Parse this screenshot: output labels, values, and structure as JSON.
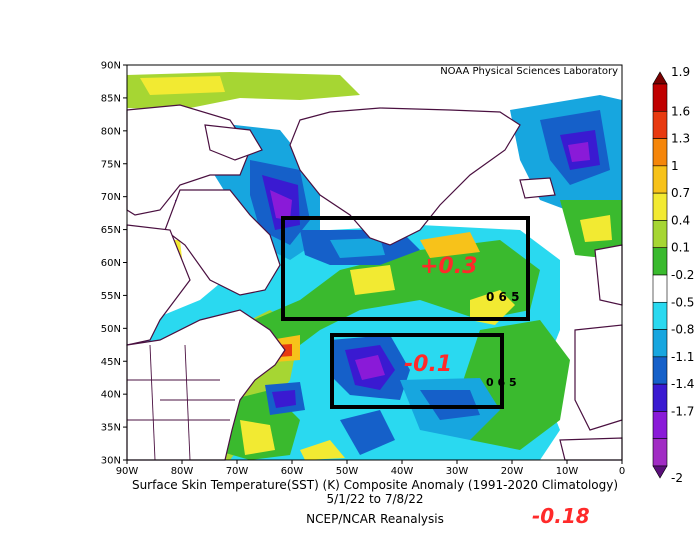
{
  "credit": "NOAA Physical Sciences Laboratory",
  "caption": {
    "line1": "Surface Skin Temperature(SST) (K) Composite Anomaly (1991-2020 Climatology)",
    "line2": "5/1/22  to 7/8/22",
    "line3": "NCEP/NCAR Reanalysis"
  },
  "axes": {
    "lat_labels": [
      "90N",
      "85N",
      "80N",
      "75N",
      "70N",
      "65N",
      "60N",
      "55N",
      "50N",
      "45N",
      "40N",
      "35N",
      "30N"
    ],
    "lon_labels": [
      "90W",
      "80W",
      "70W",
      "60W",
      "50W",
      "40W",
      "30W",
      "20W",
      "10W",
      "0"
    ]
  },
  "colorbar": {
    "labels": [
      "1.9",
      "1.6",
      "1.3",
      "1",
      "0.7",
      "0.4",
      "0.1",
      "-0.2",
      "-0.5",
      "-0.8",
      "-1.1",
      "-1.4",
      "-1.7",
      "-2"
    ],
    "colors": [
      "#7a0000",
      "#c00000",
      "#e83a10",
      "#f5860a",
      "#f7c21a",
      "#f2ea32",
      "#a6d633",
      "#3aba2e",
      "#ffffff",
      "#2ad9f0",
      "#17a6df",
      "#1560c9",
      "#3a1ad1",
      "#8a1ad8",
      "#a12cc4",
      "#5a0f7a"
    ]
  },
  "annotations": {
    "box1_note": "+0.3",
    "box2_note": "-0.1",
    "overall_note": "-0.18",
    "small_marks": [
      "0",
      "0",
      "6",
      "5",
      "6",
      "5"
    ]
  },
  "chart_data": {
    "type": "heatmap",
    "title": "Surface Skin Temperature(SST) (K) Composite Anomaly (1991-2020 Climatology)",
    "subtitle": "5/1/22  to 7/8/22",
    "source": "NCEP/NCAR Reanalysis",
    "x_range_deg": [
      -90,
      0
    ],
    "y_range_deg": [
      30,
      90
    ],
    "colorbar_range": [
      -2,
      1.9
    ],
    "boxes": [
      {
        "lon": [
          -62,
          -19
        ],
        "lat": [
          51.5,
          66.5
        ],
        "note": "+0.3"
      },
      {
        "lon": [
          -53,
          -22
        ],
        "lat": [
          38,
          50
        ],
        "note": "-0.1"
      }
    ]
  }
}
